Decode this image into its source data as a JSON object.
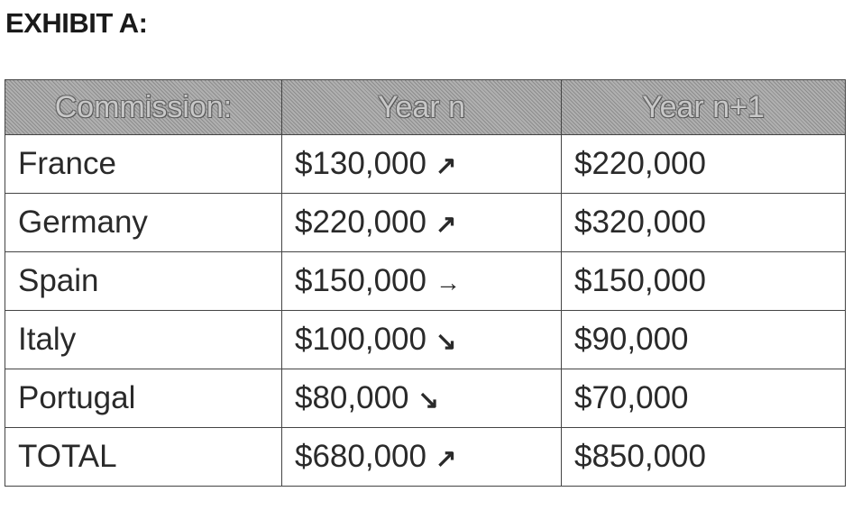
{
  "title": "EXHIBIT A:",
  "table": {
    "headers": [
      "Commission:",
      "Year n",
      "Year n+1"
    ],
    "rows": [
      {
        "country": "France",
        "year_n": "$130,000",
        "trend": "↗",
        "trend_icon": "arrow-up-right-icon",
        "year_n1": "$220,000"
      },
      {
        "country": "Germany",
        "year_n": "$220,000",
        "trend": "↗",
        "trend_icon": "arrow-up-right-icon",
        "year_n1": "$320,000"
      },
      {
        "country": "Spain",
        "year_n": "$150,000",
        "trend": "→",
        "trend_icon": "arrow-right-icon",
        "year_n1": "$150,000"
      },
      {
        "country": "Italy",
        "year_n": "$100,000",
        "trend": "↘",
        "trend_icon": "arrow-down-right-icon",
        "year_n1": "$90,000"
      },
      {
        "country": "Portugal",
        "year_n": "$80,000",
        "trend": "↘",
        "trend_icon": "arrow-down-right-icon",
        "year_n1": "$70,000"
      },
      {
        "country": "TOTAL",
        "year_n": "$680,000",
        "trend": "↗",
        "trend_icon": "arrow-up-right-icon",
        "year_n1": "$850,000"
      }
    ]
  }
}
